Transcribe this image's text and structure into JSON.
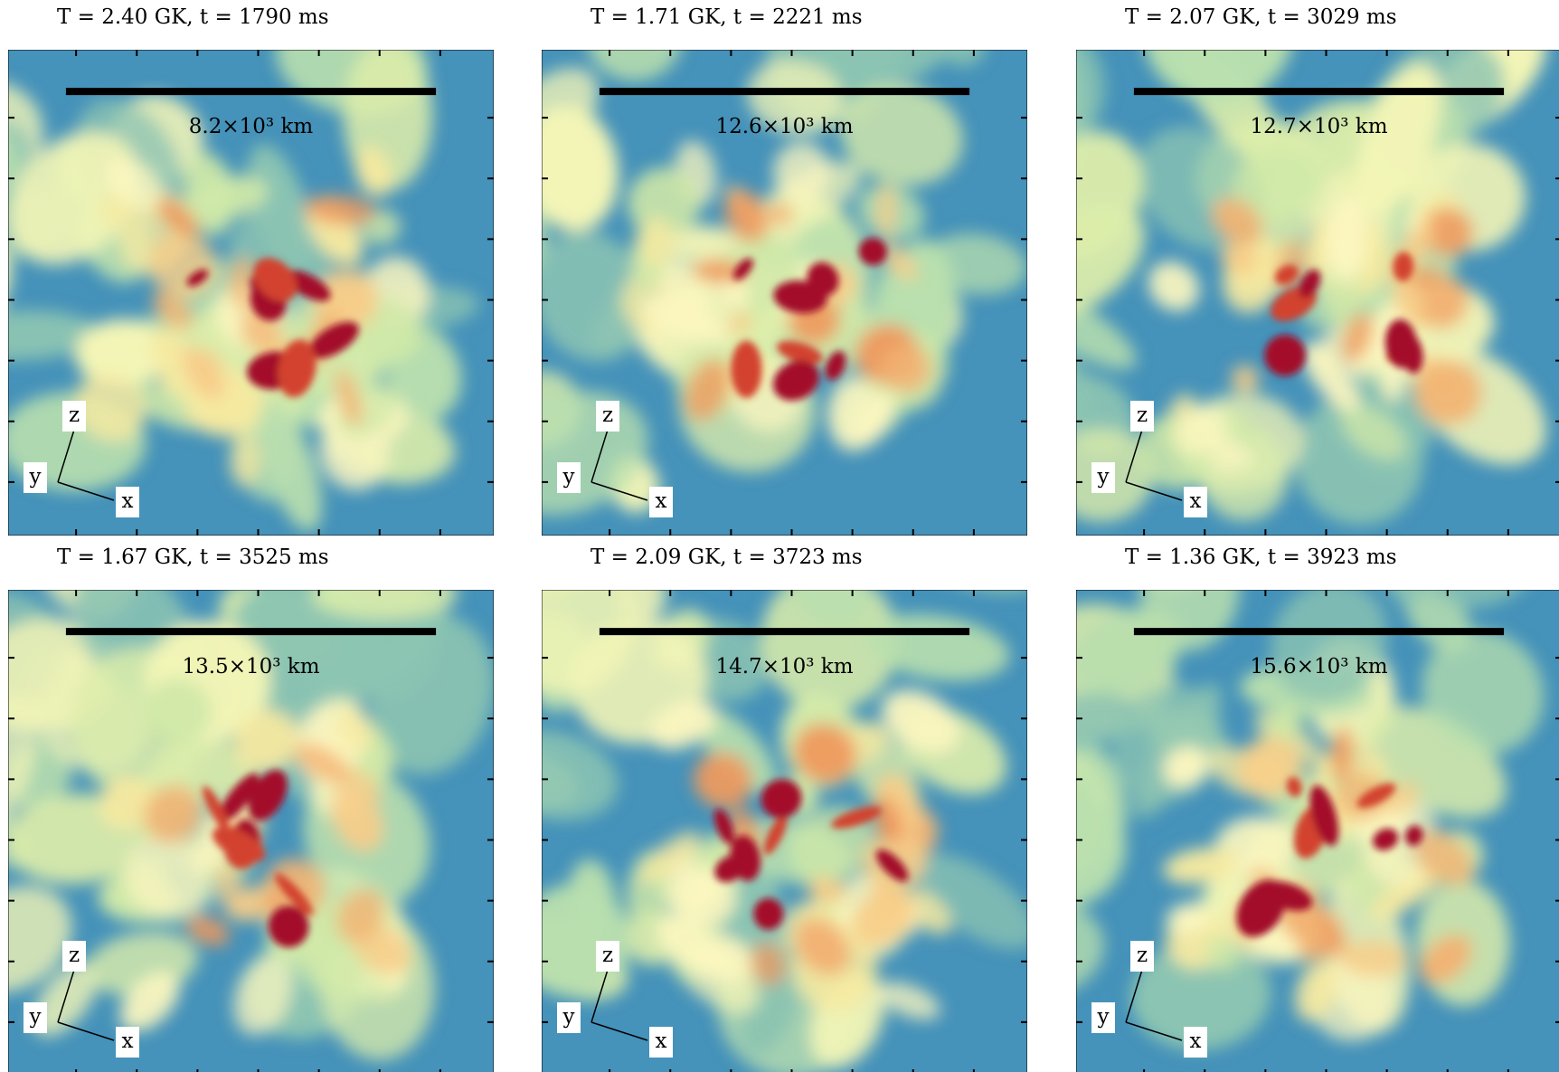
{
  "panels": [
    {
      "title": "T = 2.40 GK,  t = 1790 ms",
      "scale_label": "8.2×10³ km"
    },
    {
      "title": "T = 1.71 GK,  t = 2221 ms",
      "scale_label": "12.6×10³ km"
    },
    {
      "title": "T = 2.07 GK,  t = 3029 ms",
      "scale_label": "12.7×10³ km"
    },
    {
      "title": "T = 1.67 GK,  t = 3525 ms",
      "scale_label": "13.5×10³ km"
    },
    {
      "title": "T = 2.09 GK,  t = 3723 ms",
      "scale_label": "14.7×10³ km"
    },
    {
      "title": "T = 1.36 GK,  t = 3923 ms",
      "scale_label": "15.6×10³ km"
    }
  ],
  "axis_labels": {
    "z": "z",
    "y": "y",
    "x": "x"
  }
}
